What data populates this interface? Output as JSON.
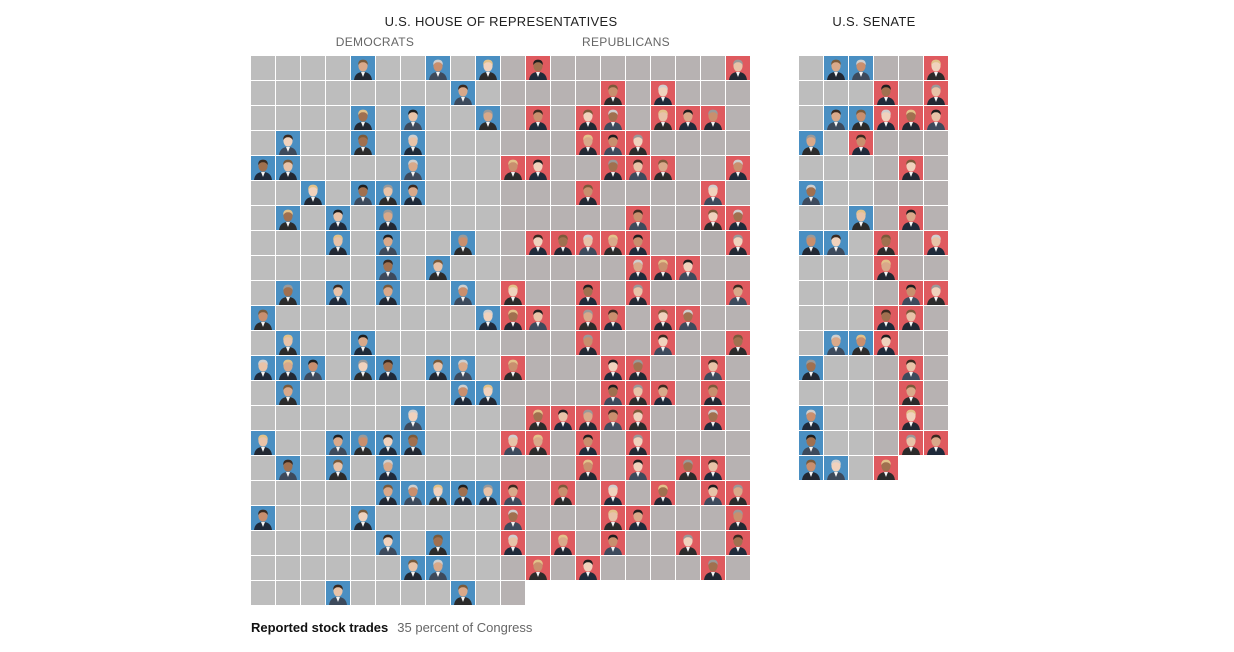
{
  "house": {
    "title": "U.S. HOUSE OF REPRESENTATIVES",
    "democrats_label": "DEMOCRATS",
    "republicans_label": "REPUBLICANS"
  },
  "senate": {
    "title": "U.S. SENATE"
  },
  "caption": {
    "label": "Reported stock trades",
    "value": "35 percent of Congress"
  },
  "colors": {
    "democrat": "#4a8fc2",
    "republican": "#df5a5f",
    "no_trades": "#bdbdbd"
  },
  "icons": {
    "member_photo": "portrait-icon"
  }
}
